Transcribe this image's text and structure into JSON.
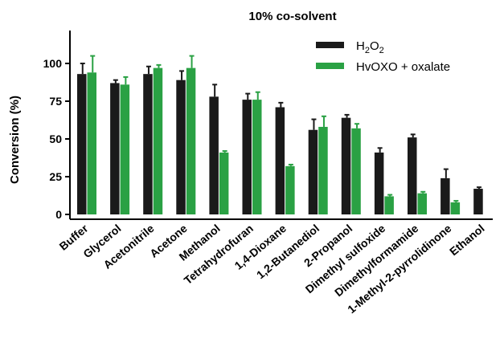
{
  "chart_data": {
    "type": "bar",
    "title": "10% co-solvent",
    "xlabel": "",
    "ylabel": "Conversion (%)",
    "ylim": [
      0,
      110
    ],
    "yticks": [
      0,
      25,
      50,
      75,
      100
    ],
    "grid": false,
    "legend_position": "top-right",
    "categories": [
      "Buffer",
      "Glycerol",
      "Acetonitrile",
      "Acetone",
      "Methanol",
      "Tetrahydrofuran",
      "1,4-Dioxane",
      "1,2-Butanediol",
      "2-Propanol",
      "Dimethyl sulfoxide",
      "Dimethylformamide",
      "1-Methyl-2-pyrrolidinone",
      "Ethanol"
    ],
    "series": [
      {
        "name": "H2O2",
        "color": "#1a1a1a",
        "values": [
          93,
          87,
          93,
          89,
          78,
          76,
          71,
          56,
          64,
          41,
          51,
          24,
          17
        ],
        "errors": [
          7,
          2,
          5,
          6,
          8,
          4,
          3,
          7,
          2,
          3,
          2,
          6,
          1
        ]
      },
      {
        "name": "HvOXO + oxalate",
        "color": "#2aa144",
        "values": [
          94,
          86,
          97,
          97,
          41,
          76,
          32,
          58,
          57,
          12,
          14,
          8,
          null
        ],
        "errors": [
          11,
          5,
          2,
          8,
          1,
          5,
          1,
          7,
          3,
          1,
          1,
          1,
          null
        ]
      }
    ]
  }
}
